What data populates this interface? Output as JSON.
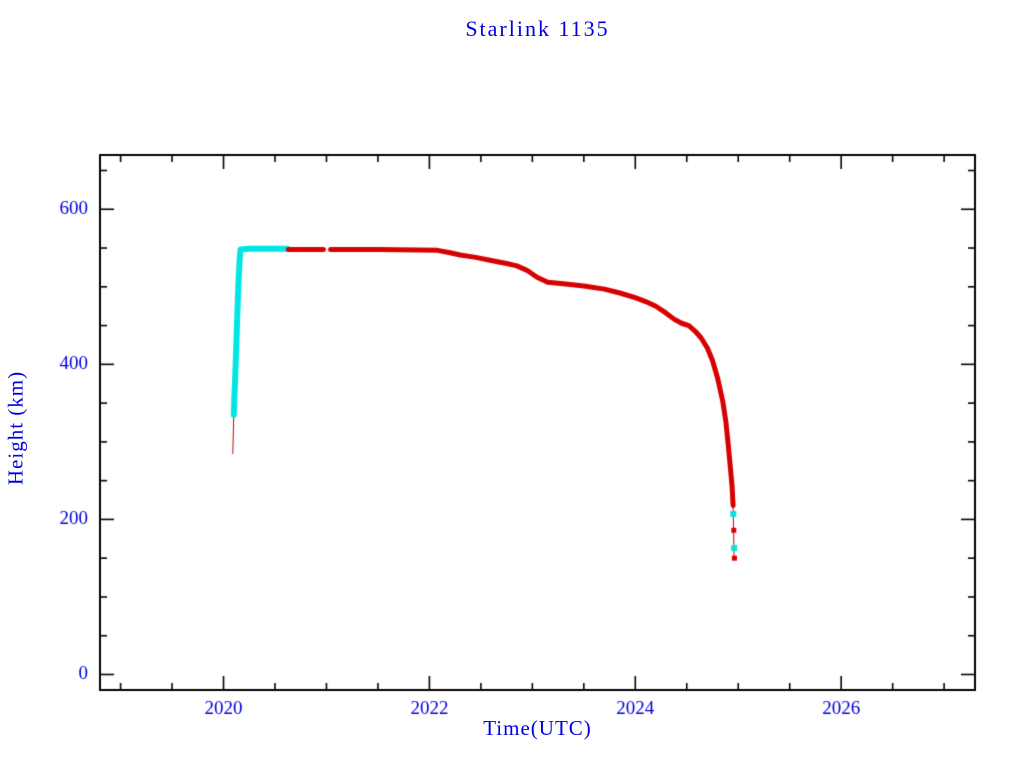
{
  "chart_data": {
    "type": "line",
    "title": "Starlink 1135",
    "xlabel": "Time(UTC)",
    "ylabel": "Height (km)",
    "xlim": [
      2018.8,
      2027.3
    ],
    "ylim": [
      -20,
      670
    ],
    "x_ticks": [
      2020,
      2022,
      2024,
      2026
    ],
    "x_tick_labels": [
      "2020",
      "2022",
      "2024",
      "2026"
    ],
    "x_minor_step": 0.5,
    "y_ticks": [
      0,
      200,
      400,
      600
    ],
    "y_tick_labels": [
      "0",
      "200",
      "400",
      "600"
    ],
    "y_minor_step": 50,
    "grid": false,
    "legend": "none",
    "frame_color": "#000000",
    "label_color": "#0000dd",
    "colors": {
      "track_red": "#d60000",
      "track_cyan": "#00e5e5"
    },
    "series": [
      {
        "name": "initial-thin-red-line",
        "color": "#cc0000",
        "width": 1,
        "marker_size": 0,
        "segments": [
          [
            [
              2020.09,
              285
            ],
            [
              2020.1,
              338
            ]
          ]
        ]
      },
      {
        "name": "cyan-track-ascent-and-plateau",
        "color": "#00e5e5",
        "width": 6,
        "marker_size": 0,
        "segments": [
          [
            [
              2020.1,
              335
            ],
            [
              2020.105,
              356
            ],
            [
              2020.115,
              390
            ],
            [
              2020.125,
              428
            ],
            [
              2020.135,
              468
            ],
            [
              2020.145,
              505
            ],
            [
              2020.155,
              532
            ],
            [
              2020.165,
              548
            ],
            [
              2020.25,
              549
            ],
            [
              2020.62,
              549
            ]
          ]
        ]
      },
      {
        "name": "red-track-decay",
        "color": "#d60000",
        "width": 5,
        "marker_size": 0,
        "segments": [
          [
            [
              2020.63,
              548
            ],
            [
              2020.97,
              548
            ]
          ],
          [
            [
              2021.04,
              548
            ],
            [
              2021.5,
              548
            ],
            [
              2022.08,
              547
            ],
            [
              2022.2,
              544
            ],
            [
              2022.3,
              541
            ],
            [
              2022.45,
              538
            ],
            [
              2022.6,
              534
            ],
            [
              2022.75,
              530
            ],
            [
              2022.85,
              527
            ],
            [
              2022.95,
              521
            ],
            [
              2023.05,
              512
            ],
            [
              2023.15,
              506
            ],
            [
              2023.3,
              504
            ],
            [
              2023.5,
              501
            ],
            [
              2023.7,
              497
            ],
            [
              2023.85,
              492
            ],
            [
              2024.0,
              486
            ],
            [
              2024.1,
              481
            ],
            [
              2024.2,
              475
            ],
            [
              2024.3,
              466
            ],
            [
              2024.38,
              458
            ],
            [
              2024.45,
              453
            ],
            [
              2024.52,
              450
            ],
            [
              2024.58,
              443
            ],
            [
              2024.64,
              434
            ],
            [
              2024.7,
              421
            ],
            [
              2024.75,
              405
            ],
            [
              2024.8,
              382
            ],
            [
              2024.85,
              352
            ],
            [
              2024.88,
              326
            ],
            [
              2024.9,
              300
            ],
            [
              2024.92,
              272
            ],
            [
              2024.94,
              243
            ],
            [
              2024.95,
              218
            ]
          ]
        ]
      },
      {
        "name": "final-thin-red-line",
        "color": "#cc0000",
        "width": 1,
        "marker_size": 0,
        "segments": [
          [
            [
              2024.95,
              218
            ],
            [
              2024.96,
              150
            ]
          ]
        ]
      },
      {
        "name": "final-cyan-points",
        "color": "#00e5e5",
        "width": 0,
        "marker_size": 6,
        "segments": [
          [
            [
              2024.952,
              207
            ],
            [
              2024.96,
              163
            ]
          ]
        ]
      },
      {
        "name": "final-red-points",
        "color": "#d60000",
        "width": 0,
        "marker_size": 5,
        "segments": [
          [
            [
              2024.957,
              186
            ],
            [
              2024.963,
              150
            ]
          ]
        ]
      }
    ]
  }
}
